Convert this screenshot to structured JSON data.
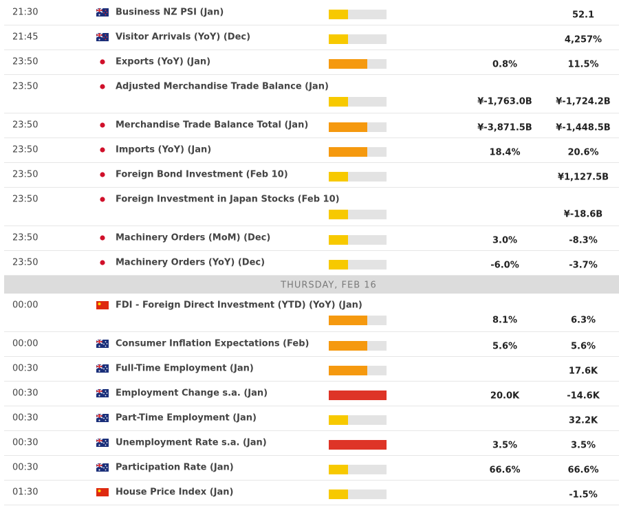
{
  "impact_colors": [
    "#f7c900",
    "#f5990f",
    "#de3427"
  ],
  "sections": [
    {
      "rows": [
        {
          "time": "21:30",
          "flag": "NZ",
          "event": "Business NZ PSI (Jan)",
          "impact": 1,
          "consensus": null,
          "previous": "52.1"
        },
        {
          "time": "21:45",
          "flag": "NZ",
          "event": "Visitor Arrivals (YoY) (Dec)",
          "impact": 1,
          "consensus": null,
          "previous": "4,257%"
        },
        {
          "time": "23:50",
          "flag": "JP",
          "event": "Exports (YoY) (Jan)",
          "impact": 2,
          "consensus": "0.8%",
          "previous": "11.5%"
        },
        {
          "time": "23:50",
          "flag": "JP",
          "event": "Adjusted Merchandise Trade Balance (Jan)",
          "impact": 1,
          "consensus": "¥-1,763.0B",
          "previous": "¥-1,724.2B"
        },
        {
          "time": "23:50",
          "flag": "JP",
          "event": "Merchandise Trade Balance Total (Jan)",
          "impact": 2,
          "consensus": "¥-3,871.5B",
          "previous": "¥-1,448.5B"
        },
        {
          "time": "23:50",
          "flag": "JP",
          "event": "Imports (YoY) (Jan)",
          "impact": 2,
          "consensus": "18.4%",
          "previous": "20.6%"
        },
        {
          "time": "23:50",
          "flag": "JP",
          "event": "Foreign Bond Investment (Feb 10)",
          "impact": 1,
          "consensus": null,
          "previous": "¥1,127.5B"
        },
        {
          "time": "23:50",
          "flag": "JP",
          "event": "Foreign Investment in Japan Stocks (Feb 10)",
          "impact": 1,
          "consensus": null,
          "previous": "¥-18.6B"
        },
        {
          "time": "23:50",
          "flag": "JP",
          "event": "Machinery Orders (MoM) (Dec)",
          "impact": 1,
          "consensus": "3.0%",
          "previous": "-8.3%"
        },
        {
          "time": "23:50",
          "flag": "JP",
          "event": "Machinery Orders (YoY) (Dec)",
          "impact": 1,
          "consensus": "-6.0%",
          "previous": "-3.7%"
        }
      ]
    },
    {
      "day": "THURSDAY, FEB 16",
      "rows": [
        {
          "time": "00:00",
          "flag": "CN",
          "event": "FDI - Foreign Direct Investment (YTD) (YoY) (Jan)",
          "impact": 2,
          "consensus": "8.1%",
          "previous": "6.3%"
        },
        {
          "time": "00:00",
          "flag": "AU",
          "event": "Consumer Inflation Expectations (Feb)",
          "impact": 2,
          "consensus": "5.6%",
          "previous": "5.6%"
        },
        {
          "time": "00:30",
          "flag": "AU",
          "event": "Full-Time Employment (Jan)",
          "impact": 2,
          "consensus": null,
          "previous": "17.6K"
        },
        {
          "time": "00:30",
          "flag": "AU",
          "event": "Employment Change s.a. (Jan)",
          "impact": 3,
          "consensus": "20.0K",
          "previous": "-14.6K"
        },
        {
          "time": "00:30",
          "flag": "AU",
          "event": "Part-Time Employment (Jan)",
          "impact": 1,
          "consensus": null,
          "previous": "32.2K"
        },
        {
          "time": "00:30",
          "flag": "AU",
          "event": "Unemployment Rate s.a. (Jan)",
          "impact": 3,
          "consensus": "3.5%",
          "previous": "3.5%"
        },
        {
          "time": "00:30",
          "flag": "AU",
          "event": "Participation Rate (Jan)",
          "impact": 1,
          "consensus": "66.6%",
          "previous": "66.6%"
        },
        {
          "time": "01:30",
          "flag": "CN",
          "event": "House Price Index (Jan)",
          "impact": 1,
          "consensus": null,
          "previous": "-1.5%"
        }
      ]
    }
  ]
}
